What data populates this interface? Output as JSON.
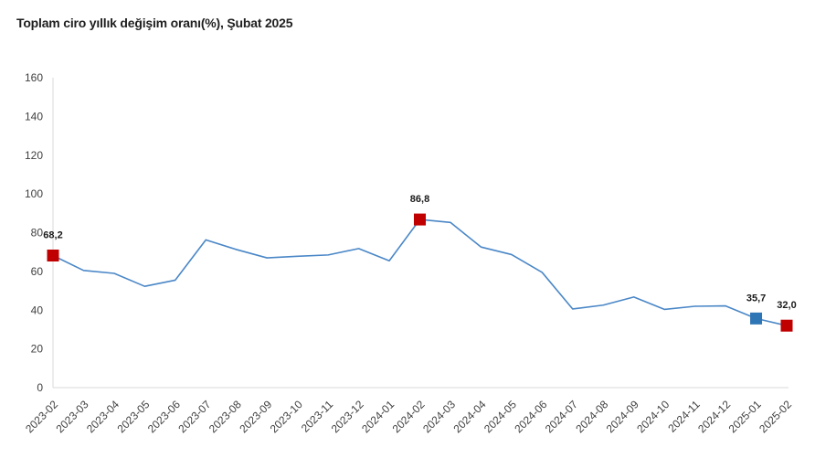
{
  "title": "Toplam ciro yıllık değişim oranı(%), Şubat 2025",
  "chart_data": {
    "type": "line",
    "x": [
      "2023-02",
      "2023-03",
      "2023-04",
      "2023-05",
      "2023-06",
      "2023-07",
      "2023-08",
      "2023-09",
      "2023-10",
      "2023-11",
      "2023-12",
      "2024-01",
      "2024-02",
      "2024-03",
      "2024-04",
      "2024-05",
      "2024-06",
      "2024-07",
      "2024-08",
      "2024-09",
      "2024-10",
      "2024-11",
      "2024-12",
      "2025-01",
      "2025-02"
    ],
    "series": [
      {
        "values": [
          68.2,
          60.5,
          59.0,
          52.3,
          55.5,
          76.3,
          71.3,
          67.0,
          67.8,
          68.5,
          71.8,
          65.5,
          86.8,
          85.3,
          72.6,
          68.7,
          59.5,
          40.6,
          42.6,
          46.8,
          40.4,
          42.0,
          42.2,
          35.7,
          32.0
        ]
      }
    ],
    "labeled_points": [
      {
        "x": "2023-02",
        "label": "68,2",
        "marker": "red"
      },
      {
        "x": "2024-02",
        "label": "86,8",
        "marker": "red"
      },
      {
        "x": "2025-01",
        "label": "35,7",
        "marker": "blue"
      },
      {
        "x": "2025-02",
        "label": "32,0",
        "marker": "red"
      }
    ],
    "title": "Toplam ciro yıllık değişim oranı(%), Şubat 2025",
    "xlabel": "",
    "ylabel": "",
    "ylim": [
      0,
      160
    ],
    "yticks": [
      0,
      20,
      40,
      60,
      80,
      100,
      120,
      140,
      160
    ],
    "grid": false,
    "legend": false,
    "colors": {
      "line": "#4a87c7",
      "marker_red": "#c00000",
      "marker_blue": "#2e75b6",
      "axis": "#d9d9d9",
      "tick_text": "#404040",
      "label_text": "#1a1a1a"
    }
  }
}
